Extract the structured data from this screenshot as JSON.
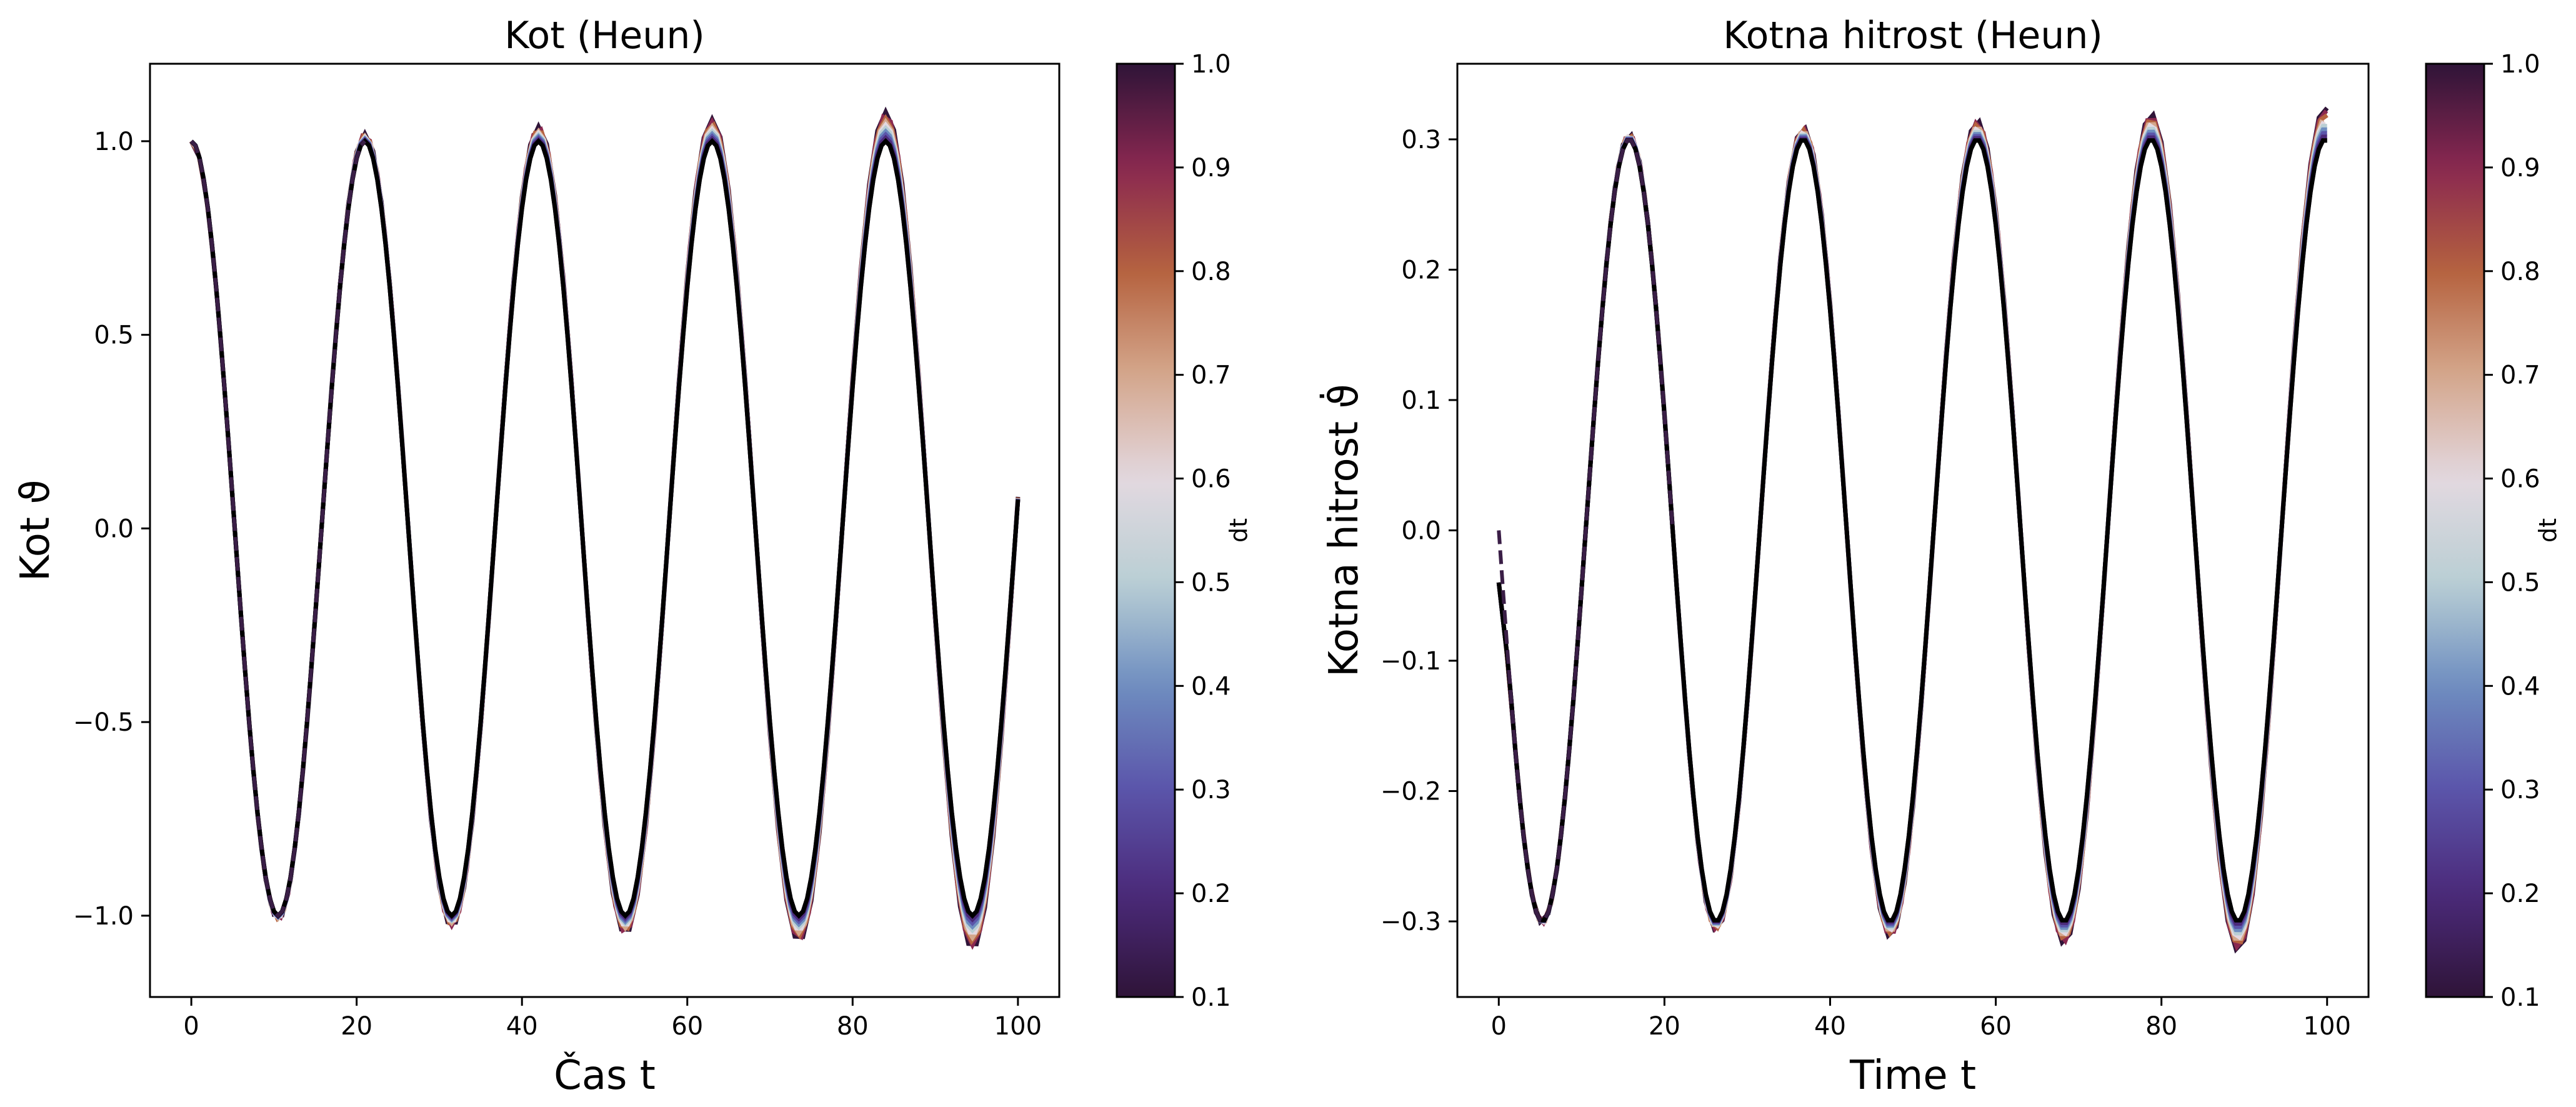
{
  "chart_data": [
    {
      "type": "line",
      "title": "Kot (Heun)",
      "xlabel": "Čas t",
      "ylabel": "Kot ϑ",
      "xlim": [
        -5,
        105
      ],
      "ylim": [
        -1.21,
        1.2
      ],
      "xticks": [
        "0",
        "20",
        "40",
        "60",
        "80",
        "100"
      ],
      "xtick_values": [
        0,
        20,
        40,
        60,
        80,
        100
      ],
      "yticks": [
        "−1.0",
        "−0.5",
        "0.0",
        "0.5",
        "1.0"
      ],
      "ytick_values": [
        -1.0,
        -0.5,
        0.0,
        0.5,
        1.0
      ],
      "grid": false,
      "colorbar": {
        "label": "dt",
        "range": [
          0.1,
          1.0
        ],
        "ticks": [
          "0.1",
          "0.2",
          "0.3",
          "0.4",
          "0.5",
          "0.6",
          "0.7",
          "0.8",
          "0.9",
          "1.0"
        ],
        "colormap": "twilight_shifted",
        "colors": [
          "#2f1438",
          "#4b2a7a",
          "#5b55aa",
          "#6e8dc0",
          "#b9cfd4",
          "#e3d8e0",
          "#d4a78c",
          "#b5623f",
          "#8a2850",
          "#2f1438"
        ]
      },
      "model": {
        "x_range": [
          0,
          100
        ],
        "period_base": 21.0,
        "amplitude_base": 1.0,
        "initial_value": 1.0,
        "dt_values": [
          0.1,
          0.2,
          0.3,
          0.4,
          0.5,
          0.6,
          0.7,
          0.8,
          0.9,
          1.0
        ],
        "peak_amplitude_at_end": {
          "dt_0.1": 1.0,
          "dt_1.0": 1.09
        },
        "reference_style": "dashed"
      },
      "series_note": "One curve per dt value, colored by dt on colorbar; amplitude grows with t for larger dt; black line and dashed reference at smallest dt."
    },
    {
      "type": "line",
      "title": "Kotna hitrost (Heun)",
      "xlabel": "Time t",
      "ylabel": "Kotna hitrost ϑ̇",
      "xlim": [
        -5,
        105
      ],
      "ylim": [
        -0.358,
        0.358
      ],
      "xticks": [
        "0",
        "20",
        "40",
        "60",
        "80",
        "100"
      ],
      "xtick_values": [
        0,
        20,
        40,
        60,
        80,
        100
      ],
      "yticks": [
        "−0.3",
        "−0.2",
        "−0.1",
        "0.0",
        "0.1",
        "0.2",
        "0.3"
      ],
      "ytick_values": [
        -0.3,
        -0.2,
        -0.1,
        0.0,
        0.1,
        0.2,
        0.3
      ],
      "grid": false,
      "colorbar": {
        "label": "dt",
        "range": [
          0.1,
          1.0
        ],
        "ticks": [
          "0.1",
          "0.2",
          "0.3",
          "0.4",
          "0.5",
          "0.6",
          "0.7",
          "0.8",
          "0.9",
          "1.0"
        ],
        "colormap": "twilight_shifted",
        "colors": [
          "#2f1438",
          "#4b2a7a",
          "#5b55aa",
          "#6e8dc0",
          "#b9cfd4",
          "#e3d8e0",
          "#d4a78c",
          "#b5623f",
          "#8a2850",
          "#2f1438"
        ]
      },
      "model": {
        "x_range": [
          0,
          100
        ],
        "period_base": 21.0,
        "amplitude_base": 0.3,
        "initial_value": 0.0,
        "dt_values": [
          0.1,
          0.2,
          0.3,
          0.4,
          0.5,
          0.6,
          0.7,
          0.8,
          0.9,
          1.0
        ],
        "peak_amplitude_at_end": {
          "dt_0.1": 0.3,
          "dt_1.0": 0.325
        },
        "reference_style": "dashed"
      },
      "series_note": "Angular velocity curves per dt; reference dashed curve starts at 0.0 while solid curves start near -0.04."
    }
  ]
}
